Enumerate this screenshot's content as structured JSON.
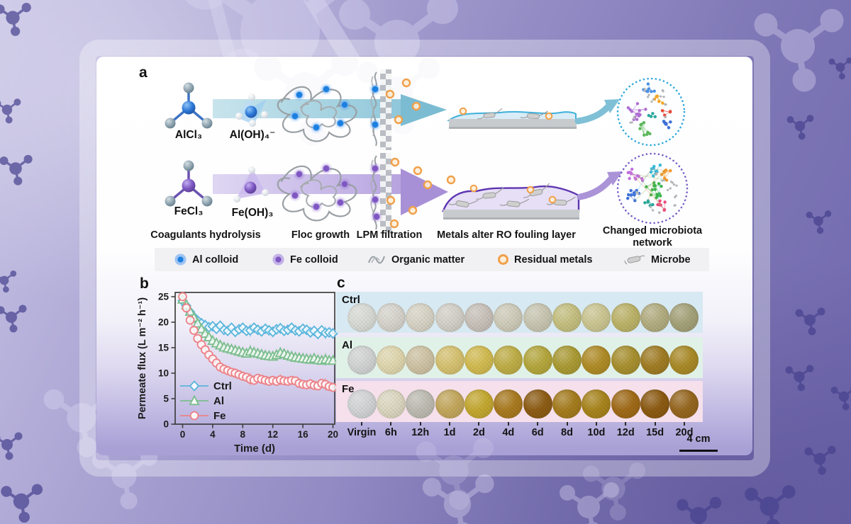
{
  "panel_a": {
    "label": "a",
    "molecules": {
      "alcl3": "AlCl₃",
      "aloh4": "Al(OH)₄⁻",
      "fecl3": "FeCl₃",
      "feoh3": "Fe(OH)₃"
    },
    "stage_labels": [
      "Coagulants hydrolysis",
      "Floc growth",
      "LPM filtration",
      "Metals alter RO fouling layer",
      "Changed microbiota network"
    ],
    "legend_items": [
      {
        "label": "Al colloid"
      },
      {
        "label": "Fe colloid"
      },
      {
        "label": "Organic matter"
      },
      {
        "label": "Residual metals"
      },
      {
        "label": "Microbe"
      }
    ],
    "colors": {
      "al_colloid": "#1c7fe0",
      "fe_colloid": "#7e57c2",
      "organic_matter": "#9aa0a4",
      "residual_metal": "#f0a04b",
      "microbe": "#cfcfcf",
      "arrow_al": "#8cc6d8",
      "arrow_fe": "#b7a4e0",
      "network_top_border": "#2fa8dc",
      "network_bottom_border": "#7a5fc5",
      "network_clusters": [
        "#b06fd4",
        "#4a90e2",
        "#f5a623",
        "#e84c3d",
        "#2aa79a",
        "#5cb85c",
        "#3b6fd8",
        "#c36ee0",
        "#35b8d8",
        "#f59622",
        "#3cb44a",
        "#ef4878",
        "#b5b5b5"
      ]
    }
  },
  "panel_b": {
    "label": "b"
  },
  "chart_data": {
    "type": "line",
    "title": "",
    "xlabel": "Time (d)",
    "ylabel": "Permeate flux (L m⁻² h⁻¹)",
    "xlim": [
      0,
      20
    ],
    "ylim": [
      0,
      25
    ],
    "xticks": [
      0,
      4,
      8,
      12,
      16,
      20
    ],
    "yticks": [
      0,
      5,
      10,
      15,
      20,
      25
    ],
    "grid": false,
    "legend_position": "lower-left",
    "x": [
      0,
      0.5,
      1,
      1.5,
      2,
      2.5,
      3,
      3.5,
      4,
      4.5,
      5,
      5.5,
      6,
      6.5,
      7,
      7.5,
      8,
      8.5,
      9,
      9.5,
      10,
      10.5,
      11,
      11.5,
      12,
      12.5,
      13,
      13.5,
      14,
      14.5,
      15,
      15.5,
      16,
      16.5,
      17,
      17.5,
      18,
      18.5,
      19,
      19.5,
      20
    ],
    "series": [
      {
        "name": "Ctrl",
        "marker": "diamond",
        "color": "#5cb6dd",
        "y": [
          24.2,
          23.2,
          22.0,
          21.0,
          20.3,
          19.8,
          19.4,
          19.0,
          19.2,
          18.7,
          19.3,
          18.5,
          18.3,
          18.9,
          18.1,
          18.6,
          18.9,
          18.3,
          18.4,
          18.9,
          18.5,
          18.2,
          18.7,
          18.4,
          18.1,
          18.6,
          18.8,
          18.3,
          18.5,
          18.9,
          18.4,
          18.2,
          18.7,
          18.5,
          18.0,
          18.3,
          17.7,
          18.4,
          17.9,
          18.0,
          17.8
        ]
      },
      {
        "name": "Al",
        "marker": "triangle",
        "color": "#7cbe8e",
        "y": [
          24.5,
          23.4,
          22.1,
          20.9,
          19.8,
          18.7,
          17.8,
          17.1,
          16.4,
          15.9,
          15.5,
          15.1,
          14.9,
          14.7,
          14.5,
          14.3,
          14.1,
          13.9,
          14.3,
          14.1,
          13.9,
          13.7,
          13.5,
          13.4,
          13.3,
          13.6,
          14.0,
          13.8,
          13.5,
          13.3,
          13.1,
          13.0,
          12.9,
          12.8,
          12.7,
          12.9,
          12.6,
          12.5,
          12.7,
          12.5,
          12.5
        ]
      },
      {
        "name": "Fe",
        "marker": "circle",
        "color": "#ec8389",
        "y": [
          25.0,
          22.8,
          20.4,
          18.4,
          16.8,
          15.6,
          14.6,
          13.6,
          12.8,
          12.0,
          11.2,
          10.8,
          10.5,
          10.2,
          10.0,
          9.7,
          9.4,
          9.2,
          8.8,
          8.6,
          9.0,
          8.8,
          8.6,
          8.4,
          8.6,
          8.4,
          8.7,
          8.5,
          8.4,
          8.6,
          8.5,
          8.0,
          7.8,
          7.7,
          7.9,
          7.6,
          7.5,
          8.0,
          7.8,
          7.4,
          7.2
        ]
      }
    ]
  },
  "panel_c": {
    "label": "c",
    "rows": [
      {
        "label": "Ctrl",
        "band_color": "#d7e9f2",
        "coupon_colors": [
          "#dbddd8",
          "#d8d6ce",
          "#dad6c8",
          "#d5d3ca",
          "#cbc4bc",
          "#d1cebc",
          "#cbc9b4",
          "#c7c282",
          "#cec894",
          "#beb56a",
          "#b5af82",
          "#a6a47a"
        ]
      },
      {
        "label": "Al",
        "band_color": "#e0f1e8",
        "coupon_colors": [
          "#d4d6d6",
          "#e2d9b0",
          "#d1c5a6",
          "#d8c472",
          "#d4bd52",
          "#c1b048",
          "#b7a93e",
          "#ad9d36",
          "#b28e28",
          "#aa9230",
          "#a27e25",
          "#ac8c29"
        ]
      },
      {
        "label": "Fe",
        "band_color": "#f5e0eb",
        "coupon_colors": [
          "#d4d6d8",
          "#ded9c2",
          "#c0beb4",
          "#c5a95e",
          "#c6aa31",
          "#ab7c21",
          "#8f5e15",
          "#a77e1f",
          "#aa861d",
          "#a26c19",
          "#8e5c13",
          "#986820"
        ]
      }
    ],
    "time_labels": [
      "Virgin",
      "6h",
      "12h",
      "1d",
      "2d",
      "4d",
      "6d",
      "8d",
      "10d",
      "12d",
      "15d",
      "20d"
    ],
    "scale_bar_label": "4 cm"
  }
}
